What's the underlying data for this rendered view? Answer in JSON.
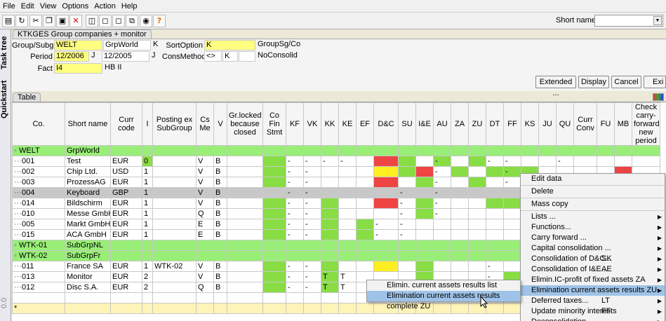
{
  "menu": [
    "File",
    "Edit",
    "View",
    "Options",
    "Action",
    "Help"
  ],
  "shortname_label": "Short name:",
  "sidebar": {
    "task_tree": "Task tree",
    "quickstart": "Quickstart",
    "bottom": "0.0"
  },
  "panel_title": "KTKGES Group companies + monitor",
  "form": {
    "groupsubg_label": "Group/Subg",
    "groupsubg": "WELT",
    "grp_name": "GrpWorld",
    "grp_k": "K",
    "sortoption_label": "SortOption",
    "sortoption": "K",
    "sortoption_desc": "GroupSg/Co",
    "period_label": "Period",
    "period": "12/2006",
    "period_j": "J",
    "period2": "12/2005",
    "period2_j": "J",
    "consmethod_label": "ConsMethod",
    "consmethod_op": "<>",
    "consmethod_val": "K",
    "consmethod_desc": "NoConsolid",
    "fact_label": "Fact",
    "fact": "I4",
    "fact_desc": "HB II"
  },
  "buttons": {
    "extended": "Extended ...",
    "display": "Display",
    "cancel": "Cancel",
    "exit": "Exi"
  },
  "table_title": "Table",
  "columns": [
    "Co.",
    "Short name",
    "Curr code",
    "I",
    "Posting ex SubGroup",
    "Cs Me",
    "V",
    "Gr.locked because closed",
    "Co Fin Stmt",
    "KF",
    "VK",
    "KK",
    "KE",
    "EF",
    "D&C",
    "SU",
    "I&E",
    "AU",
    "ZA",
    "ZU",
    "DT",
    "FF",
    "KS",
    "JU",
    "QU",
    "Curr Conv",
    "FU",
    "MB",
    "Check carry-forward new period"
  ],
  "rows": [
    {
      "co": "WELT",
      "name": "GrpWorld",
      "type": "grp"
    },
    {
      "co": "001",
      "name": "Test",
      "curr": "EUR",
      "i": "0",
      "post": "",
      "cs": "V",
      "v": "B"
    },
    {
      "co": "002",
      "name": "Chip Ltd.",
      "curr": "USD",
      "i": "1",
      "post": "",
      "cs": "V",
      "v": "B"
    },
    {
      "co": "003",
      "name": "ProzessAG",
      "curr": "EUR",
      "i": "1",
      "post": "",
      "cs": "V",
      "v": "B"
    },
    {
      "co": "004",
      "name": "Keyboard",
      "curr": "GBP",
      "i": "1",
      "post": "",
      "cs": "V",
      "v": "B",
      "type": "sel"
    },
    {
      "co": "014",
      "name": "Bildschirm",
      "curr": "EUR",
      "i": "1",
      "post": "",
      "cs": "V",
      "v": "B"
    },
    {
      "co": "010",
      "name": "Messe GmbH",
      "curr": "EUR",
      "i": "1",
      "post": "",
      "cs": "Q",
      "v": "B"
    },
    {
      "co": "005",
      "name": "Markt GmbH",
      "curr": "EUR",
      "i": "1",
      "post": "",
      "cs": "E",
      "v": "B"
    },
    {
      "co": "015",
      "name": "ACA GmbH",
      "curr": "EUR",
      "i": "1",
      "post": "",
      "cs": "E",
      "v": "B"
    },
    {
      "co": "WTK-01",
      "name": "SubGrpNL",
      "type": "grp"
    },
    {
      "co": "WTK-02",
      "name": "SubGrpFr",
      "type": "grp"
    },
    {
      "co": "011",
      "name": "France SA",
      "curr": "EUR",
      "i": "1",
      "post": "WTK-02",
      "cs": "V",
      "v": "B"
    },
    {
      "co": "013",
      "name": "Monitor",
      "curr": "EUR",
      "i": "2",
      "post": "",
      "cs": "V",
      "v": "B"
    },
    {
      "co": "012",
      "name": "Disc S.A.",
      "curr": "EUR",
      "i": "2",
      "post": "",
      "cs": "Q",
      "v": "B"
    },
    {
      "co": "",
      "name": "",
      "type": "blank"
    },
    {
      "co": "*",
      "name": "",
      "type": "new"
    }
  ],
  "context_menu": [
    {
      "label": "Edit data"
    },
    {
      "sep": true
    },
    {
      "label": "Delete"
    },
    {
      "sep": true
    },
    {
      "label": "Mass copy"
    },
    {
      "sep": true
    },
    {
      "label": "Lists ...",
      "sub": true
    },
    {
      "label": "Functions...",
      "sub": true
    },
    {
      "label": "Carry forward ...",
      "sub": true
    },
    {
      "label": "Capital consolidation ...",
      "sub": true
    },
    {
      "label": "Consolidation of D&C...",
      "sc": "SK",
      "sub": true
    },
    {
      "label": "Consolidation of I&E...",
      "sc": "AE",
      "sub": true
    },
    {
      "label": "Elimin.IC-profit of fixed assets ZA",
      "sub": true
    },
    {
      "label": "Elimination current assets results ZU",
      "sub": true,
      "hl": true
    },
    {
      "label": "Deferred taxes...",
      "sc": "LT",
      "sub": true
    },
    {
      "label": "Update minority interests",
      "sc": "FF",
      "sub": true
    },
    {
      "label": "Deconsolidation ...",
      "sub": true
    }
  ],
  "submenu": [
    {
      "label": "Elimin. current assets results  list"
    },
    {
      "label": "Elimination current assets results complete ZU",
      "hl": true
    }
  ]
}
